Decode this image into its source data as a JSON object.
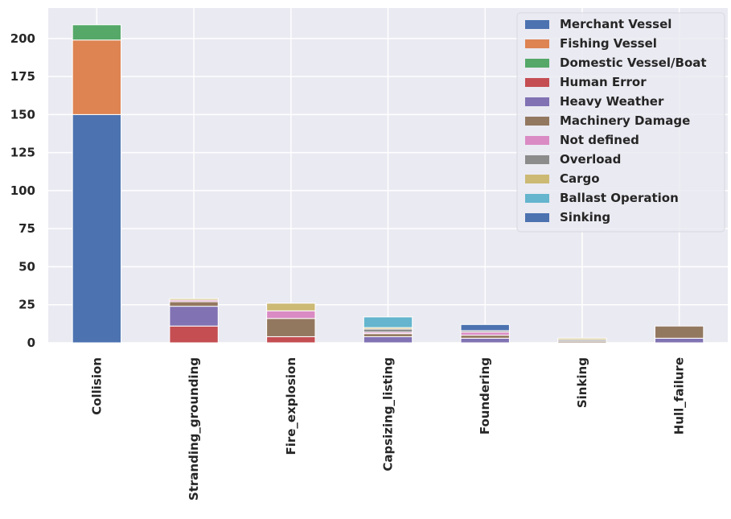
{
  "chart_data": {
    "type": "bar",
    "stacked": true,
    "categories": [
      "Collision",
      "Stranding_grounding",
      "Fire_explosion",
      "Capsizing_listing",
      "Foundering",
      "Sinking",
      "Hull_failure"
    ],
    "ylim": [
      0,
      220
    ],
    "yticks": [
      0,
      25,
      50,
      75,
      100,
      125,
      150,
      175,
      200
    ],
    "grid": true,
    "legend_position": "top-right",
    "series": [
      {
        "name": "Merchant Vessel",
        "color": "#4c72b0",
        "values": [
          150,
          0,
          0,
          0,
          0,
          0,
          0
        ]
      },
      {
        "name": "Fishing Vessel",
        "color": "#dd8452",
        "values": [
          49,
          0,
          0,
          0,
          0,
          0,
          0
        ]
      },
      {
        "name": "Domestic Vessel/Boat",
        "color": "#55a868",
        "values": [
          10,
          0,
          0,
          0,
          0,
          0,
          0
        ]
      },
      {
        "name": "Human Error",
        "color": "#c44e52",
        "values": [
          0,
          11,
          4,
          0,
          0,
          0,
          0
        ]
      },
      {
        "name": "Heavy Weather",
        "color": "#8172b3",
        "values": [
          0,
          13,
          0,
          4,
          3,
          0,
          3
        ]
      },
      {
        "name": "Machinery Damage",
        "color": "#937860",
        "values": [
          0,
          3,
          12,
          2,
          2,
          1,
          8
        ]
      },
      {
        "name": "Not defined",
        "color": "#da8bc3",
        "values": [
          0,
          1,
          5,
          1,
          2,
          0,
          0
        ]
      },
      {
        "name": "Overload",
        "color": "#8c8c8c",
        "values": [
          0,
          0,
          0,
          2,
          1,
          1,
          0
        ]
      },
      {
        "name": "Cargo",
        "color": "#ccb974",
        "values": [
          0,
          1,
          5,
          1,
          0,
          1,
          0
        ]
      },
      {
        "name": "Ballast Operation",
        "color": "#64b5cd",
        "values": [
          0,
          0,
          0,
          7,
          0,
          0,
          0
        ]
      },
      {
        "name": "Sinking",
        "color": "#4c72b0",
        "values": [
          0,
          0,
          0,
          0,
          4,
          0,
          0
        ]
      }
    ]
  }
}
